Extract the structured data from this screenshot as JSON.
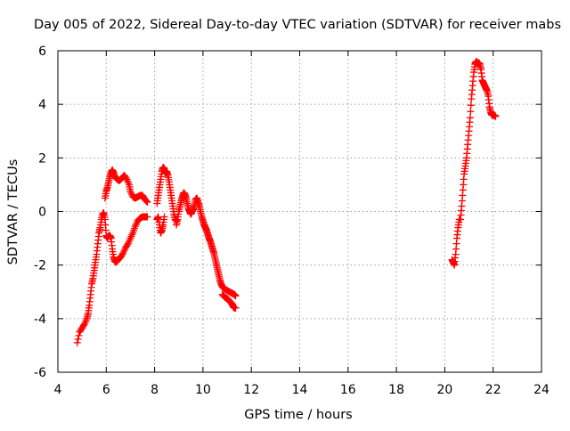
{
  "chart_data": {
    "type": "scatter",
    "title": "Day 005 of 2022, Sidereal Day-to-day VTEC variation (SDTVAR) for receiver mabs",
    "xlabel": "GPS time / hours",
    "ylabel": "SDTVAR / TECUs",
    "xlim": [
      4,
      24
    ],
    "ylim": [
      -6,
      6
    ],
    "xticks": [
      4,
      6,
      8,
      10,
      12,
      14,
      16,
      18,
      20,
      22,
      24
    ],
    "yticks": [
      -6,
      -4,
      -2,
      0,
      2,
      4,
      6
    ],
    "xtick_labels": [
      "4",
      "6",
      "8",
      "10",
      "12",
      "14",
      "16",
      "18",
      "20",
      "22",
      "24"
    ],
    "ytick_labels": [
      "-6",
      "-4",
      "-2",
      "0",
      "2",
      "4",
      "6"
    ],
    "grid": true,
    "marker": "+",
    "series": [
      {
        "name": "mabs",
        "color": "#ff0000",
        "segments": [
          [
            [
              4.8,
              -4.9
            ],
            [
              4.9,
              -4.5
            ],
            [
              5.0,
              -4.35
            ],
            [
              5.1,
              -4.2
            ],
            [
              5.2,
              -4.0
            ],
            [
              5.25,
              -3.8
            ],
            [
              5.3,
              -3.5
            ],
            [
              5.35,
              -3.1
            ],
            [
              5.4,
              -2.7
            ],
            [
              5.45,
              -2.5
            ],
            [
              5.5,
              -2.2
            ],
            [
              5.55,
              -1.9
            ],
            [
              5.6,
              -1.6
            ],
            [
              5.65,
              -1.2
            ],
            [
              5.7,
              -0.8
            ],
            [
              5.75,
              -0.6
            ],
            [
              5.8,
              -0.3
            ],
            [
              5.85,
              -0.1
            ],
            [
              5.9,
              -0.05
            ],
            [
              5.95,
              -0.3
            ],
            [
              6.0,
              -0.9
            ],
            [
              6.05,
              -1.0
            ],
            [
              6.1,
              -0.9
            ],
            [
              6.15,
              -0.9
            ],
            [
              6.2,
              -1.0
            ],
            [
              6.25,
              -1.4
            ],
            [
              6.3,
              -1.7
            ],
            [
              6.35,
              -1.85
            ],
            [
              6.4,
              -1.9
            ],
            [
              6.5,
              -1.8
            ],
            [
              6.6,
              -1.7
            ],
            [
              6.7,
              -1.55
            ],
            [
              6.8,
              -1.35
            ],
            [
              6.9,
              -1.2
            ],
            [
              7.0,
              -1.0
            ],
            [
              7.1,
              -0.8
            ],
            [
              7.2,
              -0.55
            ],
            [
              7.3,
              -0.35
            ],
            [
              7.4,
              -0.25
            ],
            [
              7.5,
              -0.2
            ],
            [
              7.6,
              -0.2
            ],
            [
              7.7,
              -0.2
            ]
          ],
          [
            [
              5.95,
              0.5
            ],
            [
              6.0,
              0.75
            ],
            [
              6.05,
              0.9
            ],
            [
              6.1,
              1.1
            ],
            [
              6.15,
              1.3
            ],
            [
              6.2,
              1.45
            ],
            [
              6.25,
              1.55
            ],
            [
              6.3,
              1.45
            ],
            [
              6.35,
              1.3
            ],
            [
              6.45,
              1.2
            ],
            [
              6.55,
              1.15
            ],
            [
              6.65,
              1.25
            ],
            [
              6.75,
              1.35
            ],
            [
              6.85,
              1.2
            ],
            [
              6.95,
              1.0
            ],
            [
              7.0,
              0.75
            ],
            [
              7.1,
              0.55
            ],
            [
              7.2,
              0.5
            ],
            [
              7.3,
              0.55
            ],
            [
              7.4,
              0.6
            ],
            [
              7.5,
              0.6
            ],
            [
              7.6,
              0.45
            ],
            [
              7.7,
              0.35
            ]
          ],
          [
            [
              8.1,
              -0.3
            ],
            [
              8.15,
              -0.2
            ],
            [
              8.2,
              -0.5
            ],
            [
              8.25,
              -0.8
            ],
            [
              8.3,
              -0.7
            ],
            [
              8.35,
              -0.5
            ],
            [
              8.4,
              -0.2
            ]
          ],
          [
            [
              8.1,
              0.3
            ],
            [
              8.15,
              0.6
            ],
            [
              8.2,
              0.9
            ],
            [
              8.25,
              1.2
            ],
            [
              8.3,
              1.5
            ],
            [
              8.35,
              1.65
            ],
            [
              8.4,
              1.6
            ],
            [
              8.45,
              1.4
            ],
            [
              8.5,
              1.5
            ],
            [
              8.55,
              1.35
            ],
            [
              8.6,
              1.1
            ],
            [
              8.65,
              0.8
            ],
            [
              8.7,
              0.5
            ],
            [
              8.75,
              0.2
            ],
            [
              8.8,
              -0.1
            ],
            [
              8.85,
              -0.3
            ],
            [
              8.9,
              -0.35
            ]
          ],
          [
            [
              8.9,
              -0.5
            ],
            [
              8.95,
              -0.3
            ],
            [
              9.0,
              0.0
            ],
            [
              9.05,
              0.2
            ],
            [
              9.1,
              0.4
            ],
            [
              9.15,
              0.55
            ],
            [
              9.2,
              0.7
            ],
            [
              9.25,
              0.65
            ],
            [
              9.3,
              0.5
            ],
            [
              9.35,
              0.3
            ],
            [
              9.4,
              0.1
            ],
            [
              9.45,
              0.0
            ],
            [
              9.5,
              -0.1
            ],
            [
              9.55,
              0.0
            ],
            [
              9.6,
              0.1
            ],
            [
              9.65,
              0.25
            ],
            [
              9.7,
              0.45
            ],
            [
              9.75,
              0.5
            ],
            [
              9.8,
              0.35
            ],
            [
              9.85,
              0.2
            ],
            [
              9.9,
              0.0
            ],
            [
              9.95,
              -0.2
            ],
            [
              10.0,
              -0.35
            ],
            [
              10.05,
              -0.5
            ],
            [
              10.1,
              -0.6
            ],
            [
              10.15,
              -0.7
            ],
            [
              10.2,
              -0.85
            ],
            [
              10.25,
              -1.0
            ],
            [
              10.3,
              -1.1
            ],
            [
              10.35,
              -1.25
            ],
            [
              10.4,
              -1.4
            ],
            [
              10.45,
              -1.55
            ],
            [
              10.5,
              -1.75
            ],
            [
              10.55,
              -1.95
            ],
            [
              10.6,
              -2.15
            ],
            [
              10.65,
              -2.35
            ],
            [
              10.7,
              -2.55
            ],
            [
              10.75,
              -2.7
            ],
            [
              10.8,
              -2.8
            ],
            [
              10.85,
              -2.85
            ],
            [
              10.9,
              -2.9
            ],
            [
              11.0,
              -2.95
            ],
            [
              11.1,
              -3.0
            ],
            [
              11.2,
              -3.05
            ],
            [
              11.3,
              -3.1
            ],
            [
              11.35,
              -3.15
            ]
          ],
          [
            [
              10.8,
              -3.1
            ],
            [
              10.9,
              -3.2
            ],
            [
              11.0,
              -3.25
            ],
            [
              11.05,
              -3.3
            ],
            [
              11.1,
              -3.35
            ],
            [
              11.15,
              -3.4
            ],
            [
              11.2,
              -3.45
            ],
            [
              11.25,
              -3.55
            ],
            [
              11.3,
              -3.6
            ],
            [
              11.35,
              -3.6
            ]
          ],
          [
            [
              20.3,
              -1.8
            ],
            [
              20.35,
              -1.9
            ],
            [
              20.4,
              -2.0
            ],
            [
              20.45,
              -1.6
            ],
            [
              20.5,
              -1.0
            ],
            [
              20.55,
              -0.6
            ],
            [
              20.6,
              -0.3
            ],
            [
              20.65,
              -0.3
            ],
            [
              20.7,
              0.2
            ],
            [
              20.75,
              0.8
            ],
            [
              20.8,
              1.4
            ],
            [
              20.85,
              1.7
            ],
            [
              20.9,
              2.0
            ],
            [
              20.95,
              2.5
            ],
            [
              21.0,
              3.0
            ],
            [
              21.05,
              3.5
            ],
            [
              21.1,
              4.2
            ],
            [
              21.15,
              4.7
            ],
            [
              21.2,
              5.2
            ],
            [
              21.25,
              5.5
            ],
            [
              21.3,
              5.6
            ],
            [
              21.35,
              5.55
            ],
            [
              21.4,
              5.55
            ],
            [
              21.45,
              5.5
            ],
            [
              21.5,
              5.3
            ],
            [
              21.55,
              4.9
            ],
            [
              21.6,
              4.8
            ],
            [
              21.65,
              4.7
            ],
            [
              21.7,
              4.6
            ],
            [
              21.75,
              4.5
            ],
            [
              21.8,
              4.3
            ],
            [
              21.85,
              3.9
            ],
            [
              21.9,
              3.7
            ],
            [
              21.95,
              3.6
            ],
            [
              22.0,
              3.6
            ],
            [
              22.05,
              3.6
            ],
            [
              22.1,
              3.55
            ]
          ]
        ]
      }
    ]
  }
}
